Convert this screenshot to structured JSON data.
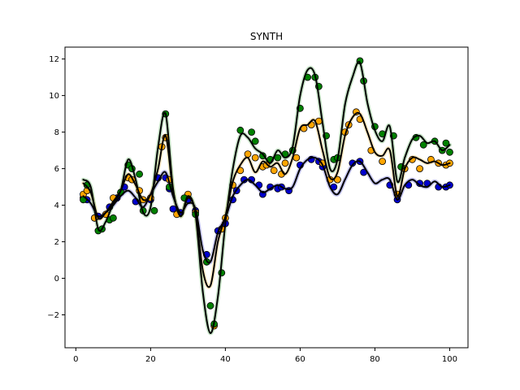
{
  "chart_data": {
    "type": "line",
    "title": "SYNTH",
    "xlabel": "",
    "ylabel": "",
    "xlim": [
      -2.9,
      104.9
    ],
    "ylim": [
      -3.8,
      12.65
    ],
    "xticks": [
      0,
      20,
      40,
      60,
      80,
      100
    ],
    "yticks": [
      -2,
      0,
      2,
      4,
      6,
      8,
      10,
      12
    ],
    "grid": false,
    "legend": "none",
    "colors": {
      "blue": "#0000cd",
      "orange": "#ffa500",
      "green": "#008000",
      "curve": "#000000"
    },
    "series": [
      {
        "color": "#0000cd",
        "band_color": "#7b7bd9",
        "curve": [
          [
            2,
            4.5
          ],
          [
            4,
            4.1
          ],
          [
            6,
            3.4
          ],
          [
            8,
            3.6
          ],
          [
            10,
            4.0
          ],
          [
            12,
            4.5
          ],
          [
            14,
            4.8
          ],
          [
            16,
            4.4
          ],
          [
            18,
            3.9
          ],
          [
            20,
            4.6
          ],
          [
            22,
            5.3
          ],
          [
            24,
            5.8
          ],
          [
            26,
            4.5
          ],
          [
            28,
            3.6
          ],
          [
            30,
            4.1
          ],
          [
            32,
            3.8
          ],
          [
            34,
            1.5
          ],
          [
            36,
            0.9
          ],
          [
            38,
            2.5
          ],
          [
            40,
            3.3
          ],
          [
            42,
            4.5
          ],
          [
            44,
            5.1
          ],
          [
            46,
            5.4
          ],
          [
            48,
            5.1
          ],
          [
            50,
            4.7
          ],
          [
            52,
            4.9
          ],
          [
            54,
            5.1
          ],
          [
            56,
            4.9
          ],
          [
            58,
            5.0
          ],
          [
            60,
            6.0
          ],
          [
            62,
            6.5
          ],
          [
            64,
            6.6
          ],
          [
            66,
            6.2
          ],
          [
            68,
            5.0
          ],
          [
            70,
            4.6
          ],
          [
            72,
            5.4
          ],
          [
            74,
            6.2
          ],
          [
            76,
            6.4
          ],
          [
            78,
            5.8
          ],
          [
            80,
            5.2
          ],
          [
            82,
            5.4
          ],
          [
            84,
            5.4
          ],
          [
            86,
            4.3
          ],
          [
            88,
            5.1
          ],
          [
            90,
            5.4
          ],
          [
            92,
            5.1
          ],
          [
            94,
            5.0
          ],
          [
            96,
            5.3
          ],
          [
            98,
            5.0
          ],
          [
            100,
            5.1
          ]
        ],
        "points": [
          [
            2,
            4.4
          ],
          [
            3,
            4.3
          ],
          [
            5,
            3.3
          ],
          [
            6,
            3.4
          ],
          [
            9,
            3.9
          ],
          [
            11,
            4.4
          ],
          [
            13,
            5.0
          ],
          [
            16,
            4.2
          ],
          [
            20,
            4.3
          ],
          [
            22,
            5.5
          ],
          [
            24,
            5.5
          ],
          [
            25,
            4.9
          ],
          [
            26,
            3.8
          ],
          [
            28,
            3.6
          ],
          [
            30,
            4.3
          ],
          [
            32,
            3.7
          ],
          [
            35,
            1.3
          ],
          [
            38,
            2.6
          ],
          [
            40,
            3.0
          ],
          [
            42,
            4.3
          ],
          [
            43,
            4.8
          ],
          [
            45,
            5.4
          ],
          [
            47,
            5.4
          ],
          [
            49,
            5.1
          ],
          [
            50,
            4.6
          ],
          [
            52,
            5.0
          ],
          [
            54,
            4.9
          ],
          [
            55,
            5.0
          ],
          [
            57,
            4.8
          ],
          [
            60,
            6.2
          ],
          [
            63,
            6.5
          ],
          [
            65,
            6.4
          ],
          [
            66,
            6.1
          ],
          [
            69,
            5.0
          ],
          [
            70,
            5.4
          ],
          [
            74,
            6.3
          ],
          [
            76,
            6.4
          ],
          [
            77,
            5.8
          ],
          [
            84,
            5.1
          ],
          [
            86,
            4.3
          ],
          [
            89,
            5.1
          ],
          [
            92,
            5.2
          ],
          [
            94,
            5.2
          ],
          [
            97,
            5.0
          ],
          [
            99,
            5.0
          ],
          [
            100,
            5.1
          ]
        ]
      },
      {
        "color": "#ffa500",
        "band_color": "#ffd280",
        "curve": [
          [
            2,
            5.2
          ],
          [
            4,
            4.7
          ],
          [
            6,
            3.3
          ],
          [
            8,
            3.6
          ],
          [
            10,
            4.2
          ],
          [
            12,
            4.8
          ],
          [
            14,
            5.7
          ],
          [
            16,
            5.1
          ],
          [
            18,
            4.3
          ],
          [
            20,
            4.6
          ],
          [
            22,
            6.0
          ],
          [
            24,
            7.8
          ],
          [
            26,
            4.8
          ],
          [
            28,
            3.4
          ],
          [
            30,
            4.4
          ],
          [
            32,
            3.6
          ],
          [
            34,
            0.4
          ],
          [
            36,
            -0.4
          ],
          [
            38,
            2.0
          ],
          [
            40,
            3.4
          ],
          [
            42,
            5.3
          ],
          [
            44,
            6.2
          ],
          [
            46,
            6.6
          ],
          [
            48,
            5.8
          ],
          [
            50,
            6.4
          ],
          [
            52,
            6.1
          ],
          [
            54,
            6.3
          ],
          [
            56,
            5.7
          ],
          [
            58,
            6.6
          ],
          [
            60,
            8.2
          ],
          [
            62,
            8.4
          ],
          [
            64,
            8.6
          ],
          [
            66,
            7.0
          ],
          [
            68,
            5.5
          ],
          [
            70,
            5.8
          ],
          [
            72,
            7.8
          ],
          [
            74,
            8.8
          ],
          [
            76,
            9.0
          ],
          [
            78,
            8.0
          ],
          [
            80,
            6.9
          ],
          [
            82,
            6.7
          ],
          [
            84,
            7.0
          ],
          [
            86,
            4.5
          ],
          [
            88,
            6.0
          ],
          [
            90,
            6.6
          ],
          [
            92,
            6.5
          ],
          [
            94,
            6.3
          ],
          [
            96,
            6.4
          ],
          [
            98,
            6.2
          ],
          [
            100,
            6.3
          ]
        ],
        "points": [
          [
            2,
            4.6
          ],
          [
            3,
            4.8
          ],
          [
            5,
            3.3
          ],
          [
            8,
            3.5
          ],
          [
            10,
            4.4
          ],
          [
            12,
            4.7
          ],
          [
            14,
            5.5
          ],
          [
            15,
            5.4
          ],
          [
            17,
            4.8
          ],
          [
            18,
            4.3
          ],
          [
            20,
            4.4
          ],
          [
            23,
            7.2
          ],
          [
            24,
            7.7
          ],
          [
            25,
            5.4
          ],
          [
            27,
            3.5
          ],
          [
            30,
            4.6
          ],
          [
            32,
            3.6
          ],
          [
            35,
            0.9
          ],
          [
            37,
            -2.6
          ],
          [
            39,
            2.7
          ],
          [
            40,
            3.3
          ],
          [
            42,
            5.1
          ],
          [
            44,
            5.9
          ],
          [
            46,
            6.8
          ],
          [
            48,
            6.6
          ],
          [
            50,
            6.1
          ],
          [
            51,
            6.2
          ],
          [
            53,
            5.9
          ],
          [
            55,
            5.7
          ],
          [
            56,
            6.3
          ],
          [
            59,
            6.6
          ],
          [
            61,
            8.2
          ],
          [
            63,
            8.4
          ],
          [
            65,
            8.6
          ],
          [
            66,
            6.3
          ],
          [
            68,
            5.4
          ],
          [
            70,
            5.4
          ],
          [
            72,
            8.0
          ],
          [
            73,
            8.4
          ],
          [
            75,
            9.1
          ],
          [
            76,
            8.7
          ],
          [
            79,
            7.0
          ],
          [
            82,
            6.4
          ],
          [
            86,
            4.6
          ],
          [
            88,
            6.0
          ],
          [
            90,
            6.5
          ],
          [
            92,
            6.0
          ],
          [
            95,
            6.5
          ],
          [
            97,
            6.3
          ],
          [
            99,
            6.2
          ],
          [
            100,
            6.3
          ]
        ]
      },
      {
        "color": "#008000",
        "band_color": "#7fbf7f",
        "curve": [
          [
            2,
            5.4
          ],
          [
            4,
            5.0
          ],
          [
            6,
            2.7
          ],
          [
            8,
            3.1
          ],
          [
            10,
            4.1
          ],
          [
            12,
            4.8
          ],
          [
            14,
            6.5
          ],
          [
            16,
            5.4
          ],
          [
            18,
            3.6
          ],
          [
            20,
            3.9
          ],
          [
            22,
            7.2
          ],
          [
            24,
            9.0
          ],
          [
            26,
            4.9
          ],
          [
            28,
            3.4
          ],
          [
            30,
            4.5
          ],
          [
            32,
            3.5
          ],
          [
            34,
            -0.8
          ],
          [
            36,
            -3.0
          ],
          [
            38,
            -1.0
          ],
          [
            40,
            3.0
          ],
          [
            42,
            6.0
          ],
          [
            44,
            7.8
          ],
          [
            46,
            7.7
          ],
          [
            48,
            7.1
          ],
          [
            50,
            6.8
          ],
          [
            52,
            6.3
          ],
          [
            54,
            7.0
          ],
          [
            56,
            6.6
          ],
          [
            58,
            7.2
          ],
          [
            60,
            10.0
          ],
          [
            62,
            11.4
          ],
          [
            64,
            11.1
          ],
          [
            66,
            8.5
          ],
          [
            68,
            6.0
          ],
          [
            70,
            6.5
          ],
          [
            72,
            9.5
          ],
          [
            74,
            11.0
          ],
          [
            76,
            11.8
          ],
          [
            78,
            9.6
          ],
          [
            80,
            8.1
          ],
          [
            82,
            7.5
          ],
          [
            84,
            8.3
          ],
          [
            86,
            5.3
          ],
          [
            88,
            6.6
          ],
          [
            90,
            7.6
          ],
          [
            92,
            7.8
          ],
          [
            94,
            7.4
          ],
          [
            96,
            7.5
          ],
          [
            98,
            7.0
          ],
          [
            100,
            7.3
          ]
        ],
        "points": [
          [
            2,
            4.3
          ],
          [
            3,
            5.1
          ],
          [
            6,
            2.6
          ],
          [
            7,
            2.7
          ],
          [
            9,
            3.2
          ],
          [
            10,
            3.3
          ],
          [
            12,
            4.7
          ],
          [
            14,
            6.2
          ],
          [
            15,
            6.0
          ],
          [
            17,
            5.7
          ],
          [
            18,
            3.7
          ],
          [
            21,
            3.7
          ],
          [
            24,
            9.0
          ],
          [
            25,
            5.0
          ],
          [
            29,
            4.4
          ],
          [
            32,
            3.5
          ],
          [
            35,
            0.9
          ],
          [
            36,
            -1.5
          ],
          [
            37,
            -2.5
          ],
          [
            39,
            0.3
          ],
          [
            44,
            8.1
          ],
          [
            47,
            8.0
          ],
          [
            48,
            7.5
          ],
          [
            50,
            6.7
          ],
          [
            52,
            6.5
          ],
          [
            54,
            6.6
          ],
          [
            56,
            6.8
          ],
          [
            58,
            7.0
          ],
          [
            60,
            9.3
          ],
          [
            62,
            11.0
          ],
          [
            64,
            11.0
          ],
          [
            65,
            10.5
          ],
          [
            67,
            7.8
          ],
          [
            69,
            6.5
          ],
          [
            70,
            6.6
          ],
          [
            76,
            11.9
          ],
          [
            77,
            10.8
          ],
          [
            80,
            8.3
          ],
          [
            82,
            7.9
          ],
          [
            85,
            7.8
          ],
          [
            87,
            6.1
          ],
          [
            91,
            7.7
          ],
          [
            93,
            7.3
          ],
          [
            96,
            7.5
          ],
          [
            98,
            7.0
          ],
          [
            99,
            7.4
          ],
          [
            100,
            6.9
          ]
        ]
      }
    ]
  }
}
